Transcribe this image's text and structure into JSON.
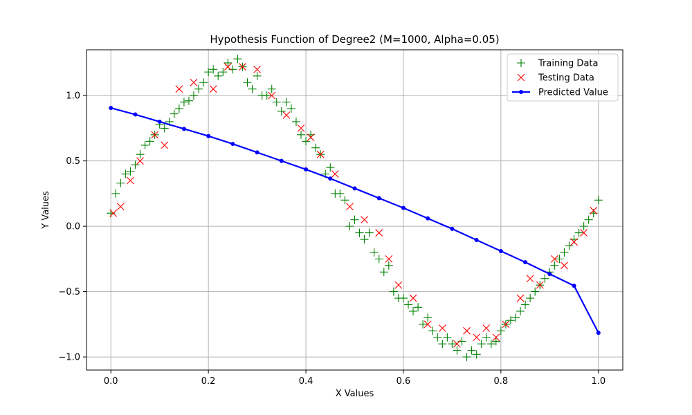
{
  "chart_data": {
    "type": "scatter",
    "title": "Hypothesis Function of Degree2 (M=1000, Alpha=0.05)",
    "xlabel": "X Values",
    "ylabel": "Y Values",
    "xlim": [
      -0.05,
      1.05
    ],
    "ylim": [
      -1.1,
      1.35
    ],
    "xticks": [
      0.0,
      0.2,
      0.4,
      0.6,
      0.8,
      1.0
    ],
    "xtick_labels": [
      "0.0",
      "0.2",
      "0.4",
      "0.6",
      "0.8",
      "1.0"
    ],
    "yticks": [
      -1.0,
      -0.5,
      0.0,
      0.5,
      1.0
    ],
    "ytick_labels": [
      "−1.0",
      "−0.5",
      "0.0",
      "0.5",
      "1.0"
    ],
    "grid": true,
    "legend_position": "top-right",
    "series": [
      {
        "name": "Training Data",
        "marker": "plus",
        "color": "#008000",
        "x": [
          0.0,
          0.01,
          0.02,
          0.03,
          0.04,
          0.05,
          0.06,
          0.07,
          0.08,
          0.09,
          0.1,
          0.11,
          0.12,
          0.13,
          0.14,
          0.15,
          0.16,
          0.17,
          0.18,
          0.19,
          0.2,
          0.21,
          0.22,
          0.23,
          0.24,
          0.25,
          0.26,
          0.27,
          0.28,
          0.29,
          0.3,
          0.31,
          0.32,
          0.33,
          0.34,
          0.35,
          0.36,
          0.37,
          0.38,
          0.39,
          0.4,
          0.41,
          0.42,
          0.43,
          0.44,
          0.45,
          0.46,
          0.47,
          0.48,
          0.49,
          0.5,
          0.51,
          0.52,
          0.53,
          0.54,
          0.55,
          0.56,
          0.57,
          0.58,
          0.59,
          0.6,
          0.61,
          0.62,
          0.63,
          0.64,
          0.65,
          0.66,
          0.67,
          0.68,
          0.69,
          0.7,
          0.71,
          0.72,
          0.73,
          0.74,
          0.75,
          0.76,
          0.77,
          0.78,
          0.79,
          0.8,
          0.81,
          0.82,
          0.83,
          0.84,
          0.85,
          0.86,
          0.87,
          0.88,
          0.89,
          0.9,
          0.91,
          0.92,
          0.93,
          0.94,
          0.95,
          0.96,
          0.97,
          0.98,
          0.99,
          1.0
        ],
        "y": [
          0.1,
          0.25,
          0.33,
          0.4,
          0.42,
          0.47,
          0.55,
          0.62,
          0.65,
          0.7,
          0.78,
          0.75,
          0.8,
          0.86,
          0.9,
          0.95,
          0.96,
          1.0,
          1.05,
          1.1,
          1.18,
          1.2,
          1.15,
          1.18,
          1.25,
          1.2,
          1.28,
          1.22,
          1.1,
          1.05,
          1.15,
          1.0,
          1.0,
          1.05,
          0.95,
          0.88,
          0.95,
          0.9,
          0.8,
          0.7,
          0.65,
          0.7,
          0.6,
          0.55,
          0.4,
          0.45,
          0.25,
          0.25,
          0.2,
          0.0,
          0.05,
          -0.05,
          -0.1,
          -0.05,
          -0.2,
          -0.25,
          -0.35,
          -0.3,
          -0.5,
          -0.55,
          -0.55,
          -0.6,
          -0.65,
          -0.62,
          -0.75,
          -0.7,
          -0.8,
          -0.85,
          -0.9,
          -0.85,
          -0.9,
          -0.95,
          -0.88,
          -1.0,
          -0.95,
          -0.98,
          -0.9,
          -0.85,
          -0.9,
          -0.88,
          -0.8,
          -0.75,
          -0.72,
          -0.7,
          -0.65,
          -0.6,
          -0.55,
          -0.5,
          -0.45,
          -0.4,
          -0.35,
          -0.3,
          -0.25,
          -0.2,
          -0.15,
          -0.1,
          -0.05,
          0.0,
          0.05,
          0.1,
          0.2
        ]
      },
      {
        "name": "Testing Data",
        "marker": "x",
        "color": "#ff0000",
        "x": [
          0.005,
          0.02,
          0.04,
          0.06,
          0.09,
          0.11,
          0.14,
          0.17,
          0.21,
          0.24,
          0.27,
          0.3,
          0.33,
          0.36,
          0.39,
          0.41,
          0.43,
          0.46,
          0.49,
          0.52,
          0.55,
          0.57,
          0.59,
          0.62,
          0.65,
          0.68,
          0.71,
          0.73,
          0.75,
          0.77,
          0.79,
          0.81,
          0.84,
          0.86,
          0.88,
          0.91,
          0.93,
          0.95,
          0.97,
          0.99
        ],
        "y": [
          0.1,
          0.15,
          0.35,
          0.5,
          0.7,
          0.62,
          1.05,
          1.1,
          1.05,
          1.22,
          1.22,
          1.2,
          1.0,
          0.85,
          0.75,
          0.68,
          0.55,
          0.4,
          0.15,
          0.05,
          -0.05,
          -0.25,
          -0.45,
          -0.55,
          -0.75,
          -0.78,
          -0.9,
          -0.8,
          -0.85,
          -0.78,
          -0.85,
          -0.75,
          -0.55,
          -0.4,
          -0.45,
          -0.25,
          -0.3,
          -0.12,
          -0.05,
          0.12
        ]
      },
      {
        "name": "Predicted Value",
        "marker": "dot-line",
        "color": "#0000ff",
        "x": [
          0.0,
          0.05,
          0.1,
          0.15,
          0.2,
          0.25,
          0.3,
          0.35,
          0.4,
          0.45,
          0.5,
          0.55,
          0.6,
          0.65,
          0.7,
          0.75,
          0.8,
          0.85,
          0.9,
          0.95,
          1.0
        ],
        "y": [
          0.905,
          0.855,
          0.8,
          0.745,
          0.69,
          0.63,
          0.565,
          0.5,
          0.435,
          0.365,
          0.29,
          0.215,
          0.14,
          0.06,
          -0.02,
          -0.105,
          -0.19,
          -0.275,
          -0.365,
          -0.455,
          -0.815
        ]
      }
    ]
  }
}
